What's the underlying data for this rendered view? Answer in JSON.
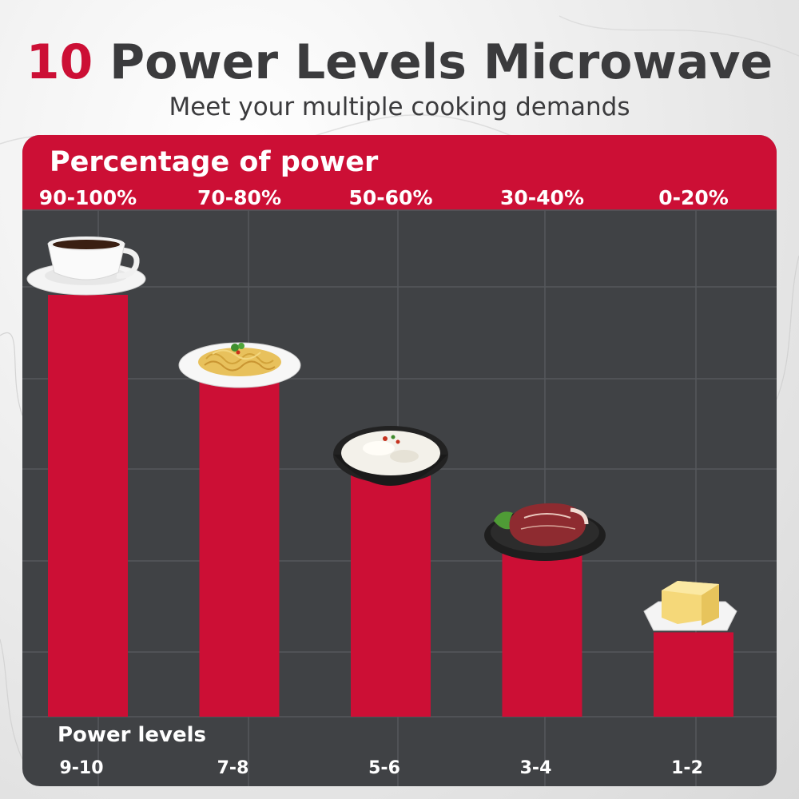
{
  "header": {
    "title_accent": "10",
    "title_rest": " Power Levels Microwave",
    "subtitle": "Meet your multiple cooking demands"
  },
  "colors": {
    "accent": "#cc0f35",
    "panel": "#404245",
    "text_dark": "#3b3b3d",
    "grid": "#55585c"
  },
  "chart_data": {
    "type": "bar",
    "title": "Percentage of power",
    "xlabel": "Power levels",
    "ylabel": "",
    "categories": [
      "9-10",
      "7-8",
      "5-6",
      "3-4",
      "1-2"
    ],
    "series": [
      {
        "values": [
          100,
          80,
          60,
          40,
          20
        ]
      }
    ],
    "value_labels": [
      "90-100%",
      "70-80%",
      "50-60%",
      "30-40%",
      "0-20%"
    ],
    "ylim": [
      0,
      100
    ],
    "grid": true,
    "legend": "none",
    "food_icons": [
      "coffee-cup-icon",
      "spaghetti-plate-icon",
      "rice-bowl-icon",
      "steak-plate-icon",
      "butter-dish-icon"
    ]
  }
}
